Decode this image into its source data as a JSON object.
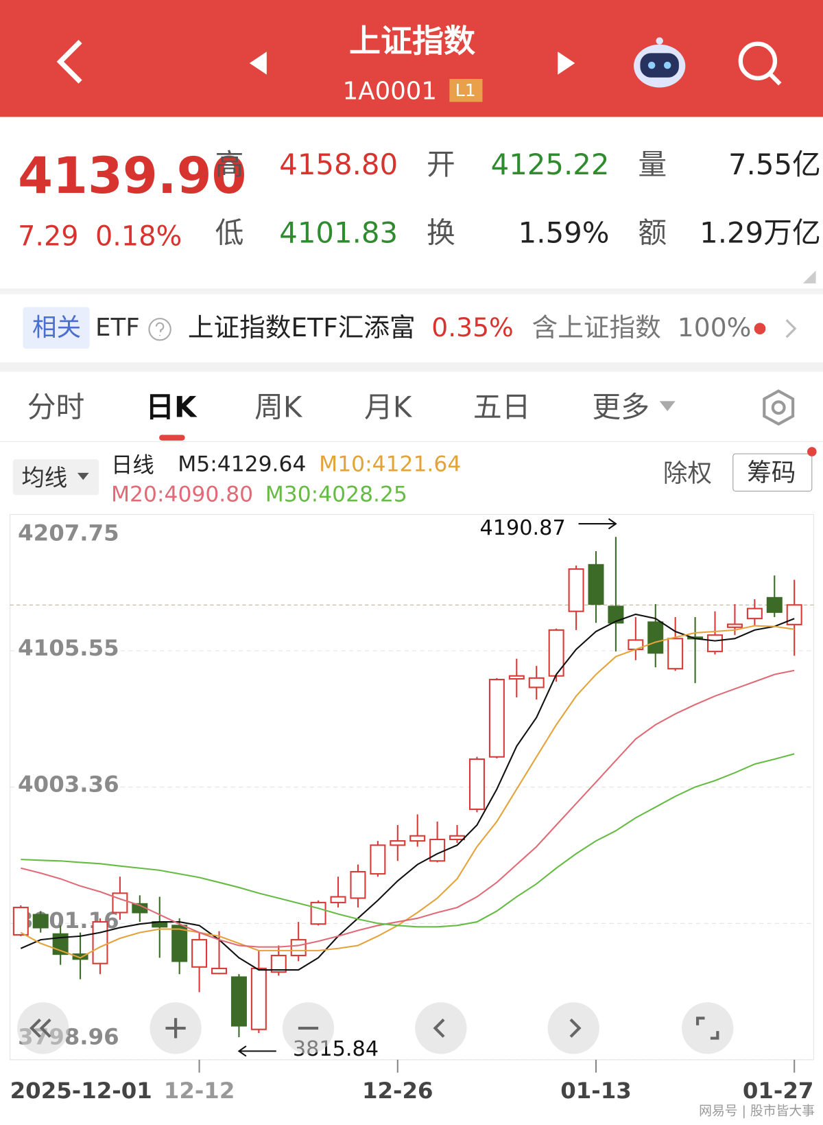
{
  "header": {
    "title": "上证指数",
    "code": "1A0001",
    "level": "L1"
  },
  "quote": {
    "price": "4139.90",
    "change": "7.29",
    "change_pct": "0.18%",
    "fields": [
      {
        "label": "高",
        "value": "4158.80"
      },
      {
        "label": "开",
        "value": "4125.22"
      },
      {
        "label": "量",
        "value": "7.55亿"
      },
      {
        "label": "低",
        "value": "4101.83"
      },
      {
        "label": "换",
        "value": "1.59%"
      },
      {
        "label": "额",
        "value": "1.29万亿"
      }
    ]
  },
  "etf": {
    "tag": "相关",
    "label": "ETF",
    "name": "上证指数ETF汇添富",
    "change": "0.35%",
    "holding_label": "含上证指数",
    "holding": "100%"
  },
  "tabs": [
    "分时",
    "日K",
    "周K",
    "月K",
    "五日",
    "更多"
  ],
  "controls": {
    "ma_button": "均线",
    "period": "日线",
    "adjust": "除权",
    "chips": "筹码"
  },
  "chart_data": {
    "type": "candlestick",
    "categories": [
      "2025-12-01",
      null,
      null,
      null,
      null,
      null,
      null,
      null,
      null,
      "12-12",
      null,
      null,
      null,
      null,
      null,
      null,
      null,
      null,
      null,
      "12-26",
      null,
      null,
      null,
      null,
      null,
      null,
      null,
      null,
      null,
      "01-13",
      null,
      null,
      null,
      null,
      null,
      null,
      null,
      null,
      null,
      "01-27"
    ],
    "open": [
      3892.6,
      3907.7,
      3893.2,
      3878.1,
      3871.1,
      3909.3,
      3915.8,
      3902.3,
      3899.6,
      3868.5,
      3863.6,
      3860.9,
      3821.7,
      3864.7,
      3877.1,
      3900.7,
      3916.8,
      3920.1,
      3938.3,
      3959.8,
      3963.0,
      3948.0,
      3964.1,
      3986.7,
      4026.0,
      4084.5,
      4078.1,
      4086.7,
      4135.1,
      4170.0,
      4138.8,
      4106.6,
      4127.0,
      4092.1,
      4115.7,
      4105.0,
      4123.2,
      4129.7,
      4145.3,
      4125.22
    ],
    "high": [
      3914.7,
      3910.4,
      3899.6,
      3894.3,
      3905.0,
      3936.2,
      3922.2,
      3921.1,
      3905.0,
      3894.3,
      3895.3,
      3863.1,
      3880.8,
      3884.6,
      3902.3,
      3918.4,
      3936.2,
      3945.3,
      3963.0,
      3974.9,
      3982.9,
      3977.5,
      3974.9,
      4026.0,
      4085.1,
      4099.6,
      4094.2,
      4122.2,
      4169.5,
      4180.2,
      4190.87,
      4130.8,
      4140.5,
      4130.8,
      4130.8,
      4135.1,
      4140.5,
      4144.2,
      4162.0,
      4158.8
    ],
    "low": [
      3891.6,
      3894.3,
      3870.1,
      3859.3,
      3863.1,
      3903.9,
      3902.3,
      3875.4,
      3863.1,
      3849.6,
      3863.1,
      3815.84,
      3819.0,
      3862.0,
      3872.8,
      3899.6,
      3913.1,
      3913.1,
      3936.2,
      3948.0,
      3958.7,
      3946.9,
      3961.4,
      3984.5,
      4024.9,
      4070.6,
      4069.0,
      4082.4,
      4121.1,
      4126.5,
      4105.0,
      4098.5,
      4093.1,
      4090.5,
      4081.3,
      4102.8,
      4117.3,
      4124.3,
      4130.8,
      4101.83
    ],
    "close": [
      3913.1,
      3898.0,
      3878.1,
      3874.4,
      3902.3,
      3923.8,
      3909.3,
      3898.6,
      3872.8,
      3888.9,
      3867.4,
      3824.4,
      3867.4,
      3877.1,
      3888.9,
      3916.8,
      3921.1,
      3939.9,
      3959.8,
      3963.0,
      3966.8,
      3964.1,
      3966.8,
      4024.3,
      4084.0,
      4086.7,
      4085.1,
      4121.1,
      4166.8,
      4140.5,
      4126.5,
      4113.6,
      4103.9,
      4114.7,
      4114.7,
      4117.3,
      4125.4,
      4137.2,
      4134.5,
      4139.9
    ],
    "up_color": "#d93a36",
    "down_color": "#3b6b26",
    "series": [
      {
        "name": "M5:4129.64",
        "color": "#111111",
        "values": [
          3882.4,
          3888.9,
          3890.5,
          3891.6,
          3894.3,
          3898.0,
          3900.7,
          3902.3,
          3902.3,
          3899.6,
          3888.9,
          3875.4,
          3866.3,
          3866.3,
          3866.3,
          3875.4,
          3891.6,
          3905.0,
          3918.4,
          3933.0,
          3945.3,
          3953.4,
          3959.8,
          3974.9,
          4001.8,
          4034.0,
          4055.5,
          4087.8,
          4106.6,
          4120.0,
          4127.6,
          4132.9,
          4129.7,
          4120.0,
          4114.7,
          4113.0,
          4114.7,
          4121.1,
          4123.8,
          4129.64
        ]
      },
      {
        "name": "M10:4121.64",
        "color": "#e3a33a",
        "values": [
          3894.3,
          3886.2,
          3880.8,
          3875.4,
          3883.5,
          3890.0,
          3894.3,
          3896.9,
          3896.9,
          3894.3,
          3891.6,
          3886.2,
          3880.8,
          3880.8,
          3880.8,
          3880.8,
          3882.4,
          3884.6,
          3891.6,
          3899.6,
          3909.3,
          3920.1,
          3934.6,
          3958.7,
          3977.5,
          4001.8,
          4026.0,
          4050.1,
          4071.6,
          4087.8,
          4101.2,
          4106.6,
          4112.0,
          4115.7,
          4119.0,
          4120.0,
          4121.1,
          4124.3,
          4123.8,
          4121.64
        ]
      },
      {
        "name": "M20:4090.80",
        "color": "#e06a75",
        "values": [
          3942.6,
          3938.9,
          3934.6,
          3929.2,
          3924.9,
          3919.5,
          3914.7,
          3907.7,
          3900.7,
          3894.3,
          3888.9,
          3884.6,
          3883.5,
          3883.5,
          3884.6,
          3887.8,
          3891.6,
          3895.9,
          3899.6,
          3902.3,
          3905.0,
          3909.3,
          3913.1,
          3921.1,
          3931.9,
          3945.3,
          3958.7,
          3974.9,
          3991.0,
          4007.1,
          4023.3,
          4039.4,
          4050.1,
          4058.2,
          4065.2,
          4071.6,
          4077.0,
          4082.4,
          4087.8,
          4090.8
        ]
      },
      {
        "name": "M30:4028.25",
        "color": "#66bb44",
        "values": [
          3949.1,
          3948.5,
          3948.0,
          3946.9,
          3945.9,
          3944.2,
          3942.6,
          3941.0,
          3938.3,
          3935.6,
          3931.9,
          3928.1,
          3923.8,
          3920.1,
          3916.3,
          3912.5,
          3908.2,
          3904.4,
          3901.2,
          3899.6,
          3898.6,
          3898.6,
          3899.6,
          3902.3,
          3910.4,
          3921.1,
          3930.8,
          3942.6,
          3953.4,
          3963.0,
          3970.6,
          3980.3,
          3988.3,
          3996.4,
          4003.4,
          4008.2,
          4014.1,
          4020.6,
          4024.3,
          4028.25
        ]
      }
    ],
    "ylim": [
      3798.96,
      4207.75
    ],
    "yticks": [
      4207.75,
      4105.55,
      4003.36,
      3901.16,
      3798.96
    ],
    "grid": true
  },
  "watermark": "网易号 | 股市皆大事"
}
